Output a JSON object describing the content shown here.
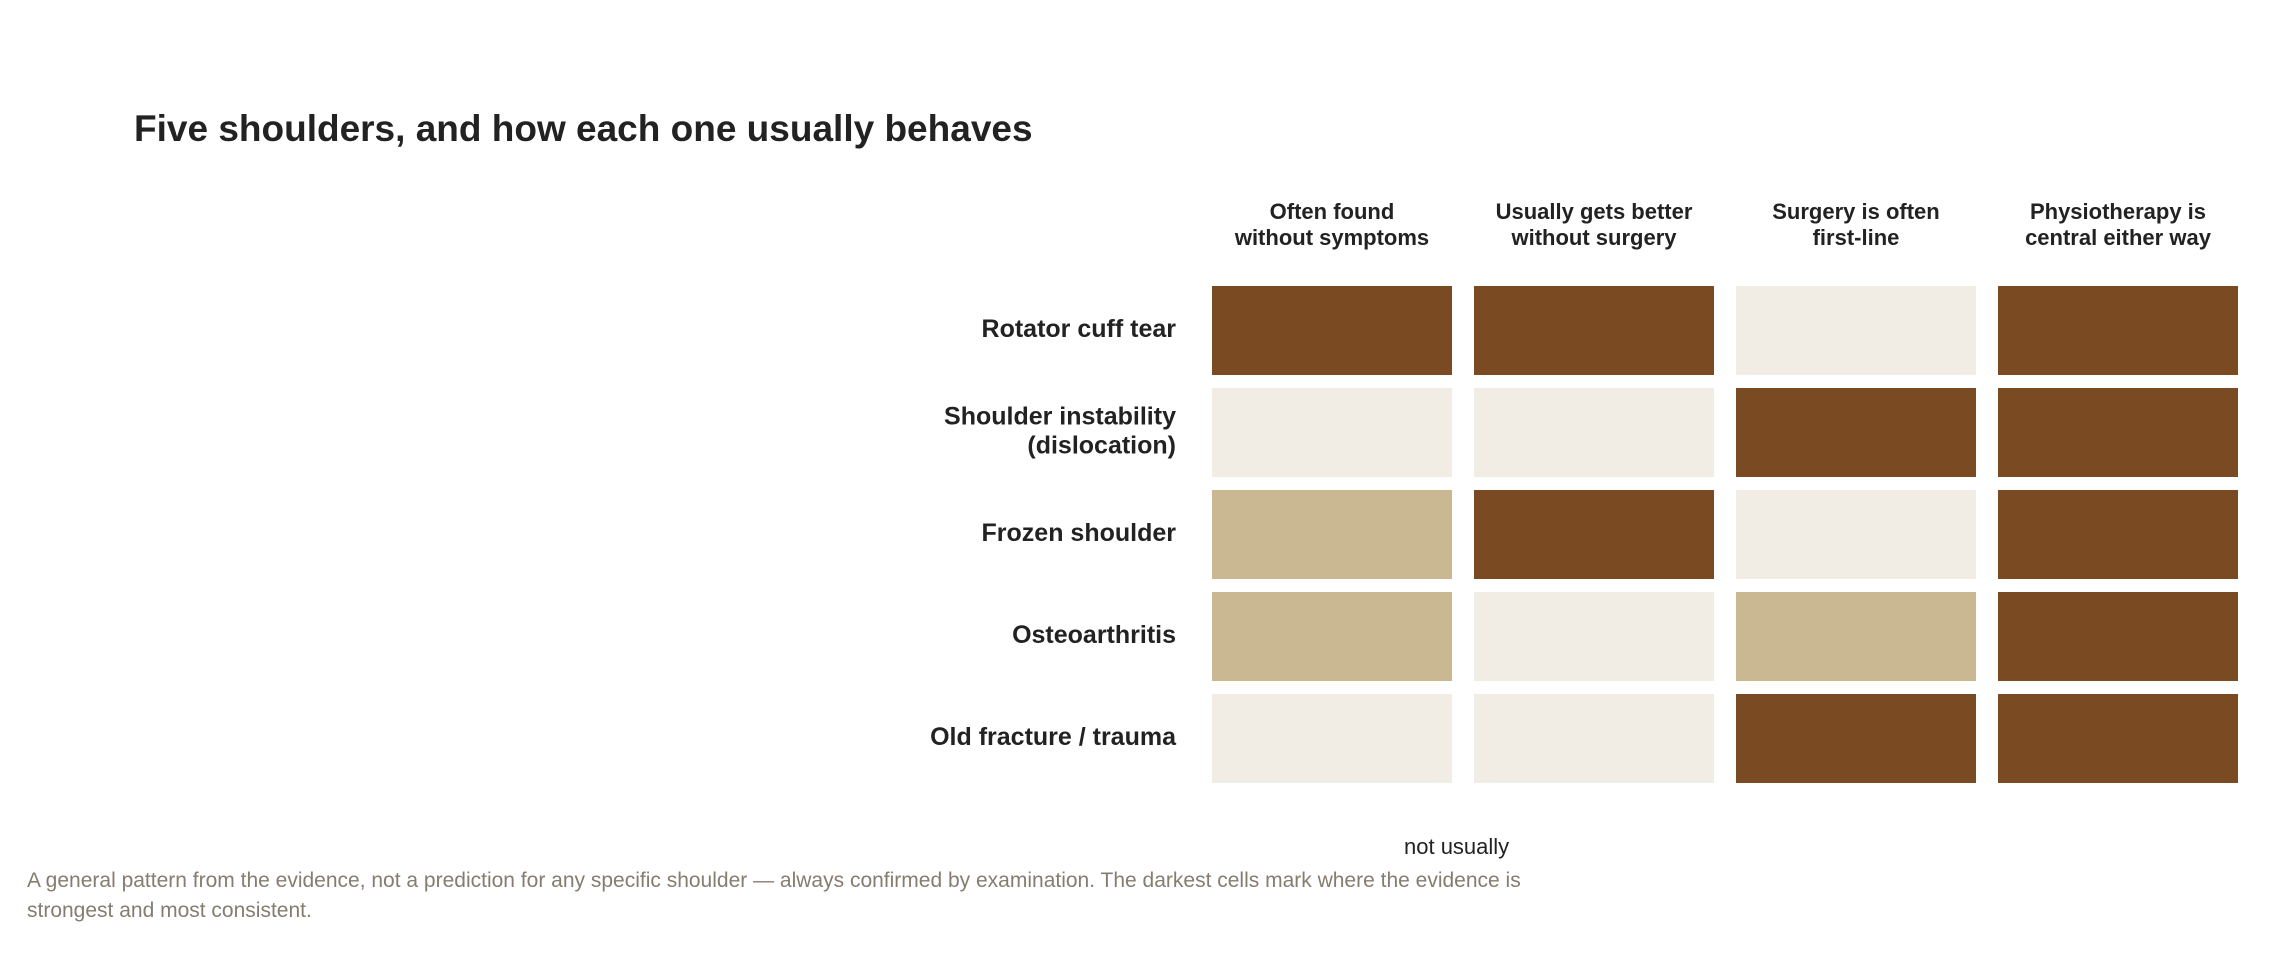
{
  "colors": {
    "strong": "#7a4a22",
    "medium": "#c9b891",
    "weak": "#f2ede4"
  },
  "chart_data": {
    "type": "heatmap",
    "title": "Five shoulders, and how each one usually behaves",
    "columns": [
      [
        "Often found",
        "without symptoms"
      ],
      [
        "Usually gets better",
        "without surgery"
      ],
      [
        "Surgery is often",
        "first-line"
      ],
      [
        "Physiotherapy is",
        "central either way"
      ]
    ],
    "rows": [
      [
        "Rotator cuff tear"
      ],
      [
        "Shoulder instability",
        "(dislocation)"
      ],
      [
        "Frozen shoulder"
      ],
      [
        "Osteoarthritis"
      ],
      [
        "Old fracture / trauma"
      ]
    ],
    "values": [
      [
        2,
        2,
        0,
        2
      ],
      [
        0,
        0,
        2,
        2
      ],
      [
        1,
        2,
        0,
        2
      ],
      [
        1,
        0,
        1,
        2
      ],
      [
        0,
        0,
        2,
        2
      ]
    ],
    "scale": {
      "levels": 3,
      "visible_level_labels": [
        "not usually"
      ]
    }
  },
  "legend": {
    "weak_label": "not usually"
  },
  "footnote": "A general pattern from the evidence, not a prediction for any specific shoulder — always confirmed by examination. The darkest cells mark where the evidence is strongest and most consistent."
}
